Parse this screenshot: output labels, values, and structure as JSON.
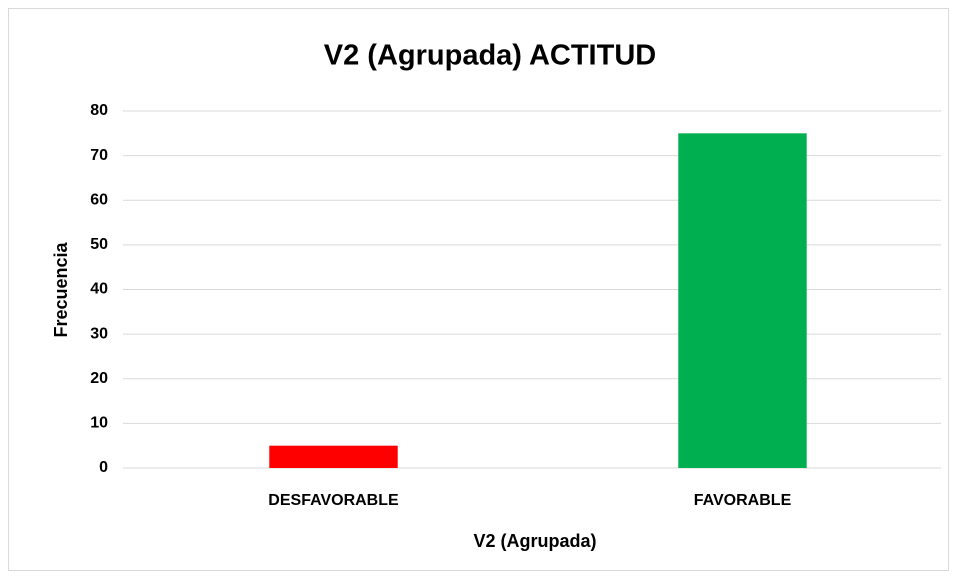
{
  "chart_data": {
    "type": "bar",
    "title": "V2 (Agrupada) ACTITUD",
    "x_label": "V2 (Agrupada)",
    "y_label": "Frecuencia",
    "categories": [
      "DESFAVORABLE",
      "FAVORABLE"
    ],
    "values": [
      5,
      75
    ],
    "colors": [
      "#ff0000",
      "#00b050"
    ],
    "ylim": [
      0,
      80
    ],
    "yticks": [
      0,
      10,
      20,
      30,
      40,
      50,
      60,
      70,
      80
    ],
    "grid": true
  }
}
